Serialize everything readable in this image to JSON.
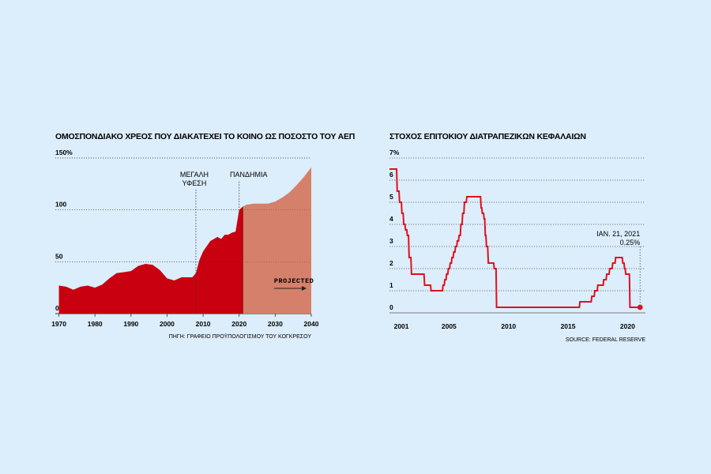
{
  "chart_data": [
    {
      "type": "area",
      "title": "ΟΜΟΣΠΟΝΔΙΑΚΟ ΧΡΕΟΣ ΠΟΥ ΔΙΑΚΑΤΕΧΕΙ ΤΟ ΚΟΙΝΟ ΩΣ ΠΟΣΟΣΤΟ ΤΟΥ ΑΕΠ",
      "xlabel": "",
      "ylabel": "",
      "xlim": [
        1969,
        2040
      ],
      "ylim": [
        0,
        150
      ],
      "xticks": [
        1970,
        1980,
        1990,
        2000,
        2010,
        2020,
        2030,
        2040
      ],
      "xtick_labels": [
        "1970",
        "1980",
        "1990",
        "2000",
        "2010",
        "2020",
        "2030",
        "2040"
      ],
      "yticks": [
        0,
        50,
        100,
        150
      ],
      "ytick_labels": [
        "0",
        "50",
        "100",
        "150%"
      ],
      "grid": "horizontal dotted",
      "source": "ΠΗΓΗ: ΓΡΑΦΕΙΟ ΠΡΟΫΠΟΛΟΓΙΣΜΟΥ ΤΟΥ ΚΟΓΚΡΕΣΟΥ",
      "annotations": [
        {
          "text": "ΜΕΓΑΛΗ",
          "x": 2008
        },
        {
          "text": "ΥΦΕΣΗ",
          "x": 2008
        },
        {
          "text": "ΠΑΝΔΗΜΙΑ",
          "x": 2020
        },
        {
          "text": "PROJECTED",
          "x": 2031
        }
      ],
      "projection_start": 2021,
      "series": [
        {
          "color": "#c8000f",
          "x": [
            1970,
            1972,
            1974,
            1976,
            1978,
            1980,
            1982,
            1984,
            1986,
            1988,
            1990,
            1992,
            1994,
            1996,
            1998,
            2000,
            2002,
            2004,
            2006,
            2007,
            2008,
            2009,
            2010,
            2011,
            2012,
            2013,
            2014,
            2015,
            2016,
            2017,
            2018,
            2019,
            2020,
            2021
          ],
          "y": [
            27,
            26,
            23,
            26,
            27,
            25,
            28,
            34,
            39,
            40,
            41,
            46,
            48,
            47,
            42,
            34,
            32,
            35,
            35,
            35,
            39,
            52,
            60,
            65,
            70,
            72,
            74,
            72,
            76,
            76,
            78,
            79,
            100,
            103
          ]
        },
        {
          "color": "#d5806a",
          "x": [
            2021,
            2022,
            2024,
            2026,
            2028,
            2030,
            2032,
            2034,
            2036,
            2038,
            2040
          ],
          "y": [
            103,
            105,
            106,
            106,
            106,
            108,
            112,
            117,
            124,
            132,
            141
          ]
        }
      ]
    },
    {
      "type": "line",
      "title": "ΣΤΟΧΟΣ ΕΠΙΤΟΚΙΟΥ ΔΙΑΤΡΑΠΕΖΙΚΩΝ ΚΕΦΑΛΑΙΩΝ",
      "xlabel": "",
      "ylabel": "",
      "xlim": [
        2000,
        2021.5
      ],
      "ylim": [
        0,
        7
      ],
      "xticks": [
        2001,
        2005,
        2010,
        2015,
        2020
      ],
      "xtick_labels": [
        "2001",
        "2005",
        "2010",
        "2015",
        "2020"
      ],
      "yticks": [
        0,
        1,
        2,
        3,
        4,
        5,
        6,
        7
      ],
      "ytick_labels": [
        "0",
        "1",
        "2",
        "3",
        "4",
        "5",
        "6",
        "7%"
      ],
      "grid": "horizontal dotted",
      "source": "SOURCE: FEDERAL RESERVE",
      "callout": {
        "line1": "ΙΑΝ. 21, 2021",
        "line2": "0.25%",
        "x": 2021.05,
        "y": 0.25
      },
      "series": [
        {
          "color": "#e0101e",
          "step": true,
          "x": [
            2000.0,
            2000.6,
            2000.65,
            2000.8,
            2000.85,
            2001.0,
            2001.05,
            2001.15,
            2001.2,
            2001.3,
            2001.35,
            2001.45,
            2001.5,
            2001.6,
            2001.65,
            2001.8,
            2001.85,
            2002.9,
            2002.95,
            2003.45,
            2003.5,
            2004.45,
            2004.5,
            2004.6,
            2004.65,
            2004.75,
            2004.8,
            2004.9,
            2004.95,
            2005.05,
            2005.1,
            2005.2,
            2005.25,
            2005.35,
            2005.4,
            2005.5,
            2005.55,
            2005.65,
            2005.7,
            2005.8,
            2005.85,
            2005.95,
            2006.0,
            2006.1,
            2006.15,
            2006.25,
            2006.3,
            2006.45,
            2006.5,
            2007.65,
            2007.7,
            2007.75,
            2007.8,
            2007.9,
            2007.95,
            2008.0,
            2008.05,
            2008.1,
            2008.15,
            2008.25,
            2008.3,
            2008.75,
            2008.8,
            2008.95,
            2009.0,
            2015.95,
            2016.0,
            2016.95,
            2017.0,
            2017.2,
            2017.25,
            2017.45,
            2017.5,
            2017.95,
            2018.0,
            2018.2,
            2018.25,
            2018.45,
            2018.5,
            2018.7,
            2018.75,
            2018.95,
            2019.0,
            2019.55,
            2019.6,
            2019.7,
            2019.75,
            2019.8,
            2019.85,
            2020.15,
            2020.2,
            2021.05
          ],
          "y": [
            6.5,
            6.5,
            5.5,
            5.5,
            5.0,
            5.0,
            4.5,
            4.5,
            4.0,
            4.0,
            3.75,
            3.75,
            3.5,
            3.5,
            2.5,
            2.5,
            1.75,
            1.75,
            1.25,
            1.25,
            1.0,
            1.0,
            1.25,
            1.25,
            1.5,
            1.5,
            1.75,
            1.75,
            2.0,
            2.0,
            2.25,
            2.25,
            2.5,
            2.5,
            2.75,
            2.75,
            3.0,
            3.0,
            3.25,
            3.25,
            3.5,
            3.5,
            4.0,
            4.0,
            4.5,
            4.5,
            5.0,
            5.0,
            5.25,
            5.25,
            4.75,
            4.75,
            4.5,
            4.5,
            4.25,
            4.25,
            3.5,
            3.5,
            3.0,
            3.0,
            2.25,
            2.25,
            2.0,
            2.0,
            0.25,
            0.25,
            0.5,
            0.5,
            0.75,
            0.75,
            1.0,
            1.0,
            1.25,
            1.25,
            1.5,
            1.5,
            1.75,
            1.75,
            2.0,
            2.0,
            2.25,
            2.25,
            2.5,
            2.5,
            2.25,
            2.25,
            2.0,
            2.0,
            1.75,
            1.75,
            0.25,
            0.25
          ]
        }
      ]
    }
  ]
}
